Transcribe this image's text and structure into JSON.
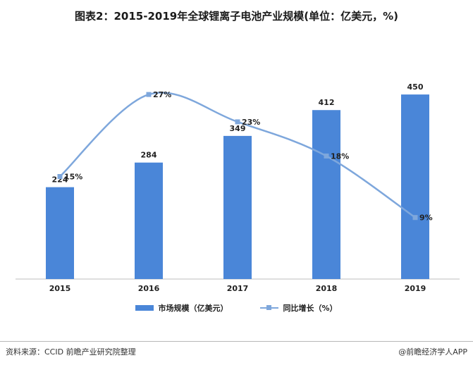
{
  "title": "图表2：2015-2019年全球锂离子电池产业规模(单位：亿美元，%)",
  "source": "资料来源：CCID 前瞻产业研究院整理",
  "credit": "@前瞻经济学人APP",
  "colors": {
    "bar": "#4a86d8",
    "line": "#7ea7dc",
    "axis": "#bdbdbd"
  },
  "chart_data": {
    "type": "bar",
    "categories": [
      "2015",
      "2016",
      "2017",
      "2018",
      "2019"
    ],
    "series": [
      {
        "name": "市场规模（亿美元）",
        "type": "bar",
        "values": [
          224,
          284,
          349,
          412,
          450
        ],
        "axis": "left"
      },
      {
        "name": "同比增长（%）",
        "type": "line",
        "values": [
          15,
          27,
          23,
          18,
          9
        ],
        "axis": "right",
        "label_suffix": "%"
      }
    ],
    "ylim_left": [
      0,
      500
    ],
    "ylim_right": [
      0,
      30
    ],
    "grid": false,
    "legend": "bottom-center"
  }
}
